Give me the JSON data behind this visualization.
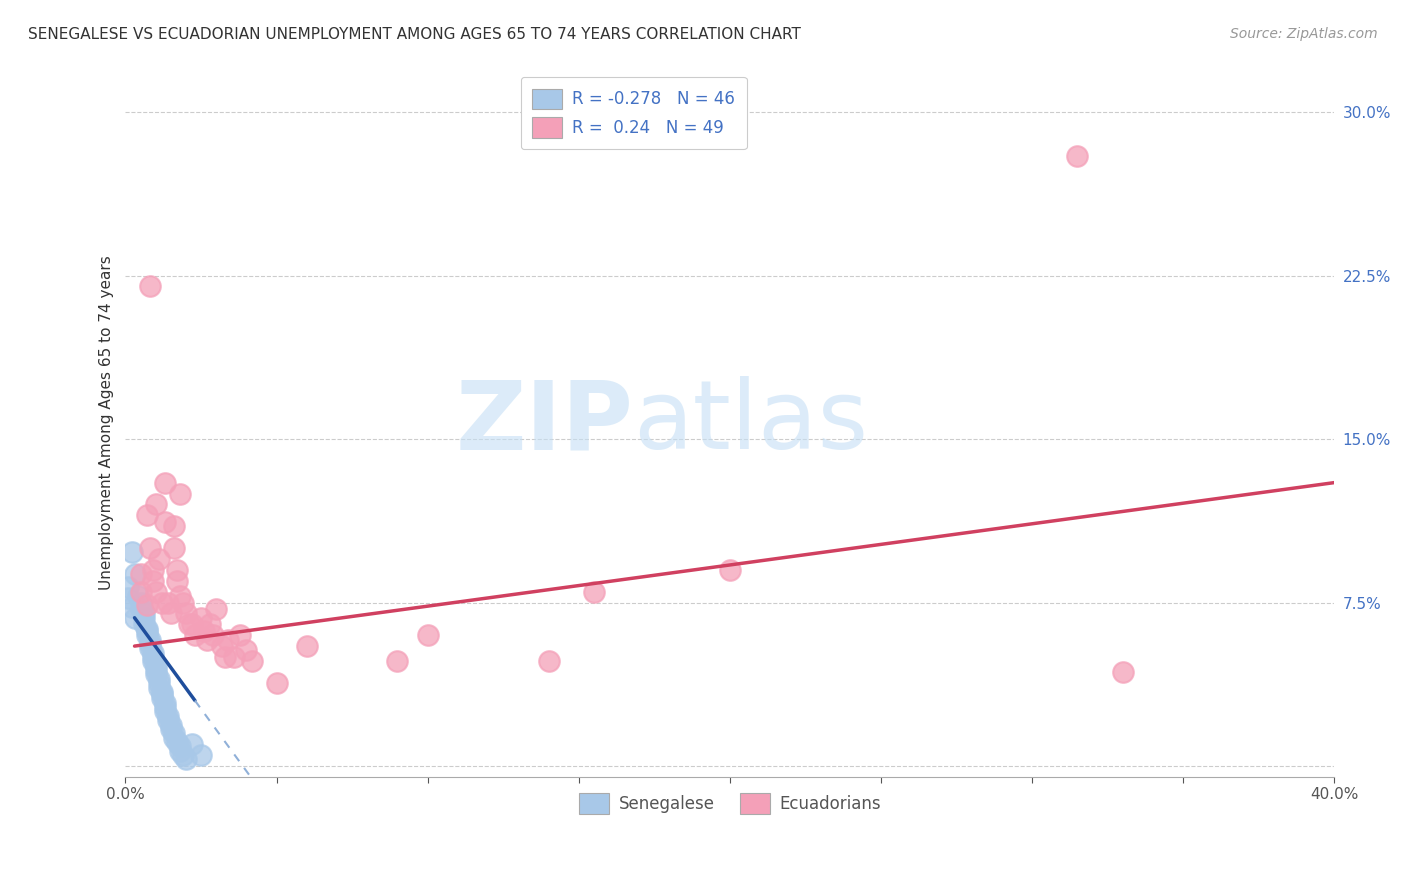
{
  "title": "SENEGALESE VS ECUADORIAN UNEMPLOYMENT AMONG AGES 65 TO 74 YEARS CORRELATION CHART",
  "source": "Source: ZipAtlas.com",
  "ylabel": "Unemployment Among Ages 65 to 74 years",
  "xlim": [
    0.0,
    0.4
  ],
  "ylim": [
    -0.005,
    0.32
  ],
  "xticks": [
    0.0,
    0.05,
    0.1,
    0.15,
    0.2,
    0.25,
    0.3,
    0.35,
    0.4
  ],
  "yticks": [
    0.0,
    0.075,
    0.15,
    0.225,
    0.3
  ],
  "xticklabels": [
    "0.0%",
    "",
    "",
    "",
    "",
    "",
    "",
    "",
    "40.0%"
  ],
  "yticklabels": [
    "",
    "7.5%",
    "15.0%",
    "22.5%",
    "30.0%"
  ],
  "senegalese_color": "#a8c8e8",
  "ecuadorian_color": "#f4a0b8",
  "senegalese_R": -0.278,
  "senegalese_N": 46,
  "ecuadorian_R": 0.24,
  "ecuadorian_N": 49,
  "watermark_zip": "ZIP",
  "watermark_atlas": "atlas",
  "senegalese_scatter": [
    [
      0.002,
      0.098
    ],
    [
      0.003,
      0.088
    ],
    [
      0.004,
      0.078
    ],
    [
      0.005,
      0.075
    ],
    [
      0.005,
      0.072
    ],
    [
      0.006,
      0.07
    ],
    [
      0.006,
      0.068
    ],
    [
      0.006,
      0.065
    ],
    [
      0.007,
      0.063
    ],
    [
      0.007,
      0.062
    ],
    [
      0.007,
      0.06
    ],
    [
      0.008,
      0.058
    ],
    [
      0.008,
      0.056
    ],
    [
      0.008,
      0.054
    ],
    [
      0.009,
      0.052
    ],
    [
      0.009,
      0.05
    ],
    [
      0.009,
      0.048
    ],
    [
      0.01,
      0.046
    ],
    [
      0.01,
      0.044
    ],
    [
      0.01,
      0.042
    ],
    [
      0.011,
      0.04
    ],
    [
      0.011,
      0.038
    ],
    [
      0.011,
      0.036
    ],
    [
      0.012,
      0.034
    ],
    [
      0.012,
      0.033
    ],
    [
      0.012,
      0.031
    ],
    [
      0.013,
      0.029
    ],
    [
      0.013,
      0.027
    ],
    [
      0.013,
      0.025
    ],
    [
      0.014,
      0.023
    ],
    [
      0.014,
      0.021
    ],
    [
      0.015,
      0.019
    ],
    [
      0.015,
      0.017
    ],
    [
      0.016,
      0.015
    ],
    [
      0.016,
      0.013
    ],
    [
      0.017,
      0.011
    ],
    [
      0.018,
      0.009
    ],
    [
      0.018,
      0.007
    ],
    [
      0.019,
      0.005
    ],
    [
      0.02,
      0.003
    ],
    [
      0.001,
      0.082
    ],
    [
      0.001,
      0.077
    ],
    [
      0.002,
      0.073
    ],
    [
      0.003,
      0.068
    ],
    [
      0.022,
      0.01
    ],
    [
      0.025,
      0.005
    ]
  ],
  "ecuadorian_scatter": [
    [
      0.005,
      0.088
    ],
    [
      0.005,
      0.08
    ],
    [
      0.007,
      0.074
    ],
    [
      0.007,
      0.115
    ],
    [
      0.008,
      0.1
    ],
    [
      0.008,
      0.22
    ],
    [
      0.009,
      0.09
    ],
    [
      0.009,
      0.085
    ],
    [
      0.01,
      0.08
    ],
    [
      0.01,
      0.12
    ],
    [
      0.011,
      0.095
    ],
    [
      0.012,
      0.075
    ],
    [
      0.013,
      0.13
    ],
    [
      0.013,
      0.112
    ],
    [
      0.014,
      0.075
    ],
    [
      0.015,
      0.07
    ],
    [
      0.016,
      0.11
    ],
    [
      0.016,
      0.1
    ],
    [
      0.017,
      0.09
    ],
    [
      0.017,
      0.085
    ],
    [
      0.018,
      0.078
    ],
    [
      0.018,
      0.125
    ],
    [
      0.019,
      0.075
    ],
    [
      0.02,
      0.07
    ],
    [
      0.021,
      0.065
    ],
    [
      0.022,
      0.065
    ],
    [
      0.023,
      0.06
    ],
    [
      0.025,
      0.068
    ],
    [
      0.026,
      0.062
    ],
    [
      0.027,
      0.058
    ],
    [
      0.028,
      0.065
    ],
    [
      0.029,
      0.06
    ],
    [
      0.03,
      0.072
    ],
    [
      0.032,
      0.055
    ],
    [
      0.033,
      0.05
    ],
    [
      0.034,
      0.058
    ],
    [
      0.036,
      0.05
    ],
    [
      0.038,
      0.06
    ],
    [
      0.04,
      0.053
    ],
    [
      0.042,
      0.048
    ],
    [
      0.05,
      0.038
    ],
    [
      0.06,
      0.055
    ],
    [
      0.09,
      0.048
    ],
    [
      0.1,
      0.06
    ],
    [
      0.14,
      0.048
    ],
    [
      0.155,
      0.08
    ],
    [
      0.2,
      0.09
    ],
    [
      0.315,
      0.28
    ],
    [
      0.33,
      0.043
    ]
  ],
  "senegalese_line_color": "#1f4e9c",
  "senegalese_line_dash_color": "#90b0d8",
  "ecuadorian_line_color": "#d04060",
  "grid_color": "#cccccc",
  "background_color": "#ffffff",
  "title_fontsize": 11,
  "axis_label_fontsize": 11,
  "tick_fontsize": 11,
  "legend_fontsize": 12,
  "source_fontsize": 10
}
